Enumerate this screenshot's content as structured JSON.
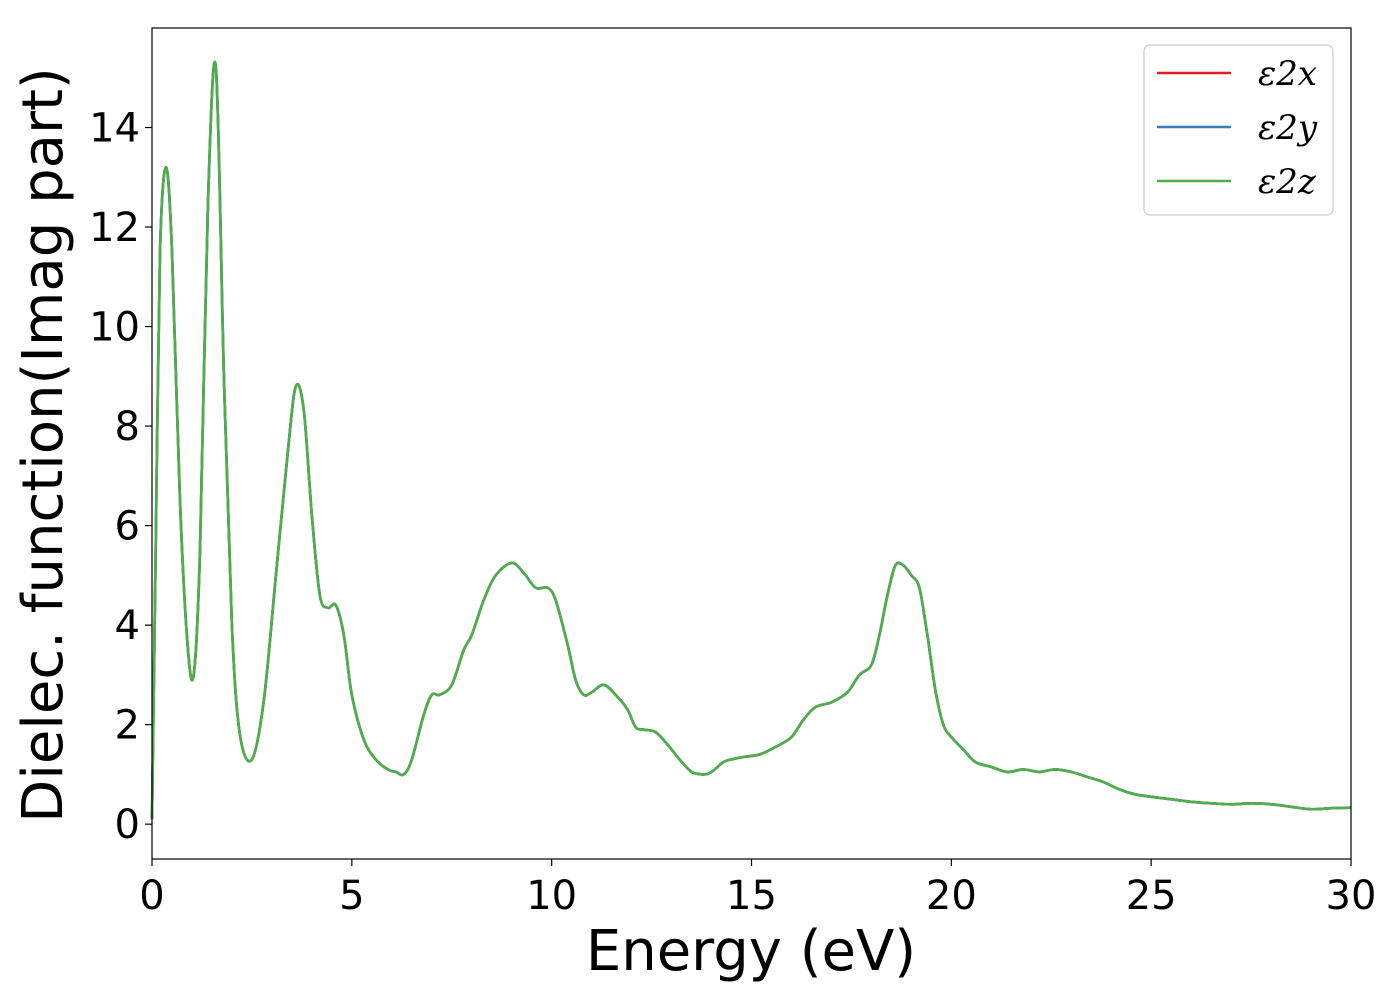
{
  "chart_data": {
    "type": "line",
    "title": "",
    "xlabel": "Energy (eV)",
    "ylabel": "Dielec. function(Imag part)",
    "xlim": [
      0,
      30
    ],
    "ylim": [
      -0.7,
      16.0
    ],
    "xticks": [
      0,
      5,
      10,
      15,
      20,
      25,
      30
    ],
    "yticks": [
      0,
      2,
      4,
      6,
      8,
      10,
      12,
      14
    ],
    "grid": false,
    "legend_position": "top-right",
    "x": [
      0,
      0.1,
      0.2,
      0.35,
      0.5,
      0.7,
      0.9,
      1.05,
      1.2,
      1.4,
      1.6,
      1.8,
      2.0,
      2.2,
      2.5,
      2.8,
      3.1,
      3.4,
      3.6,
      3.8,
      4.0,
      4.2,
      4.4,
      4.6,
      4.8,
      5.0,
      5.3,
      5.6,
      5.9,
      6.1,
      6.3,
      6.5,
      6.8,
      7.0,
      7.2,
      7.5,
      7.8,
      8.0,
      8.3,
      8.6,
      9.0,
      9.3,
      9.6,
      9.9,
      10.1,
      10.4,
      10.6,
      10.8,
      11.0,
      11.3,
      11.6,
      11.9,
      12.1,
      12.3,
      12.6,
      12.9,
      13.2,
      13.5,
      13.8,
      14.0,
      14.3,
      14.5,
      14.8,
      15.2,
      15.6,
      16.0,
      16.3,
      16.6,
      17.0,
      17.4,
      17.7,
      18.0,
      18.2,
      18.4,
      18.6,
      18.8,
      19.0,
      19.2,
      19.4,
      19.6,
      19.8,
      20.0,
      20.3,
      20.6,
      21.0,
      21.4,
      21.8,
      22.2,
      22.6,
      23.0,
      23.4,
      23.8,
      24.2,
      24.6,
      25.0,
      25.5,
      26.0,
      26.5,
      27.0,
      27.5,
      28.0,
      28.5,
      29.0,
      29.5,
      30.0
    ],
    "series": [
      {
        "name": "ε2x",
        "color": "#e41a1c"
      },
      {
        "name": "ε2y",
        "color": "#377eb8"
      },
      {
        "name": "ε2z",
        "color": "#4daf4a"
      }
    ],
    "values": [
      0.1,
      6.0,
      11.5,
      13.2,
      11.5,
      6.5,
      3.5,
      3.05,
      5.5,
      12.5,
      15.2,
      9.0,
      4.0,
      1.8,
      1.3,
      2.5,
      5.0,
      7.5,
      8.8,
      8.3,
      6.2,
      4.6,
      4.35,
      4.4,
      3.8,
      2.6,
      1.7,
      1.3,
      1.1,
      1.05,
      1.0,
      1.3,
      2.2,
      2.6,
      2.6,
      2.8,
      3.5,
      3.8,
      4.5,
      5.0,
      5.25,
      5.05,
      4.75,
      4.75,
      4.5,
      3.6,
      2.9,
      2.6,
      2.65,
      2.8,
      2.6,
      2.3,
      1.95,
      1.9,
      1.85,
      1.6,
      1.3,
      1.05,
      1.0,
      1.05,
      1.25,
      1.3,
      1.35,
      1.4,
      1.55,
      1.75,
      2.1,
      2.35,
      2.45,
      2.65,
      3.0,
      3.2,
      3.8,
      4.6,
      5.2,
      5.2,
      5.0,
      4.75,
      3.8,
      2.7,
      2.0,
      1.75,
      1.5,
      1.25,
      1.15,
      1.05,
      1.1,
      1.05,
      1.1,
      1.05,
      0.95,
      0.85,
      0.7,
      0.6,
      0.55,
      0.5,
      0.45,
      0.42,
      0.4,
      0.42,
      0.4,
      0.35,
      0.3,
      0.32,
      0.33
    ]
  }
}
